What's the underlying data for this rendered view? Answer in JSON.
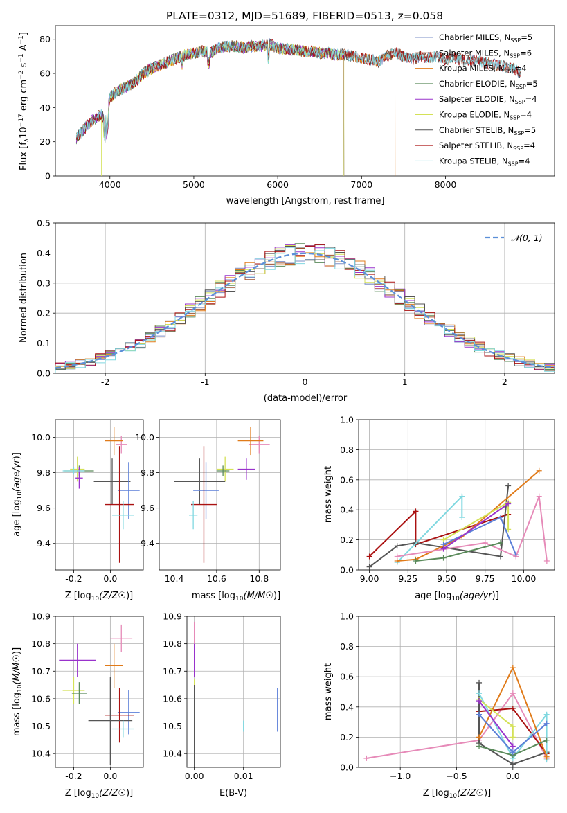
{
  "figure_title": "PLATE=0312, MJD=51689, FIBERID=0513, z=0.058",
  "colors": {
    "Chabrier MILES": "#7b8fc7",
    "Salpeter MILES": "#a0522d",
    "Kroupa MILES": "#e07b1a",
    "Chabrier ELODIE": "#5a8a5a",
    "Salpeter ELODIE": "#9932cc",
    "Kroupa ELODIE": "#d4e157",
    "Chabrier STELIB": "#555555",
    "Salpeter STELIB": "#aa1111",
    "Kroupa STELIB": "#80d8e0",
    "Chabrier MILES err": "#5b7fd8",
    "Salpeter MILES err": "#e68ab8",
    "normal": "#5b8fd8"
  },
  "legend_spectrum": [
    {
      "model": "Chabrier MILES",
      "text": "Chabrier MILES, N",
      "sub": "SSP",
      "suffix": "=5"
    },
    {
      "model": "Salpeter MILES",
      "text": "Salpeter MILES, N",
      "sub": "SSP",
      "suffix": "=6"
    },
    {
      "model": "Kroupa MILES",
      "text": "Kroupa MILES, N",
      "sub": "SSP",
      "suffix": "=4"
    },
    {
      "model": "Chabrier ELODIE",
      "text": "Chabrier ELODIE, N",
      "sub": "SSP",
      "suffix": "=5"
    },
    {
      "model": "Salpeter ELODIE",
      "text": "Salpeter ELODIE, N",
      "sub": "SSP",
      "suffix": "=4"
    },
    {
      "model": "Kroupa ELODIE",
      "text": "Kroupa ELODIE, N",
      "sub": "SSP",
      "suffix": "=4"
    },
    {
      "model": "Chabrier STELIB",
      "text": "Chabrier STELIB, N",
      "sub": "SSP",
      "suffix": "=5"
    },
    {
      "model": "Salpeter STELIB",
      "text": "Salpeter STELIB, N",
      "sub": "SSP",
      "suffix": "=4"
    },
    {
      "model": "Kroupa STELIB",
      "text": "Kroupa STELIB, N",
      "sub": "SSP",
      "suffix": "=4"
    }
  ],
  "chart_data": [
    {
      "id": "spectrum",
      "type": "line",
      "xlabel": "wavelength [Angstrom, rest frame]",
      "ylabel": "Flux [f",
      "xlim": [
        3350,
        9300
      ],
      "ylim": [
        0,
        88
      ],
      "xticks": [
        4000,
        5000,
        6000,
        7000,
        8000
      ],
      "yticks": [
        0,
        20,
        40,
        60,
        80
      ],
      "continuum": [
        [
          3600,
          22
        ],
        [
          3700,
          28
        ],
        [
          3800,
          33
        ],
        [
          3900,
          36
        ],
        [
          3950,
          32
        ],
        [
          4000,
          46
        ],
        [
          4100,
          50
        ],
        [
          4200,
          52
        ],
        [
          4300,
          55
        ],
        [
          4400,
          60
        ],
        [
          4500,
          63
        ],
        [
          4600,
          65
        ],
        [
          4700,
          67
        ],
        [
          4800,
          69
        ],
        [
          4900,
          71
        ],
        [
          5000,
          72
        ],
        [
          5100,
          73
        ],
        [
          5200,
          72
        ],
        [
          5300,
          75
        ],
        [
          5400,
          76
        ],
        [
          5500,
          76
        ],
        [
          5600,
          75
        ],
        [
          5700,
          76
        ],
        [
          5800,
          76
        ],
        [
          5900,
          77
        ],
        [
          6000,
          75
        ],
        [
          6100,
          74
        ],
        [
          6200,
          74
        ],
        [
          6300,
          73
        ],
        [
          6400,
          73
        ],
        [
          6500,
          72
        ],
        [
          6600,
          72
        ],
        [
          6700,
          71
        ],
        [
          6800,
          71
        ],
        [
          6900,
          70
        ],
        [
          7000,
          69
        ],
        [
          7100,
          68
        ],
        [
          7200,
          67
        ],
        [
          7300,
          70
        ],
        [
          7400,
          72
        ],
        [
          7500,
          70
        ],
        [
          7600,
          68
        ],
        [
          7700,
          70
        ],
        [
          7800,
          69
        ],
        [
          7900,
          70
        ],
        [
          8000,
          68
        ],
        [
          8100,
          69
        ],
        [
          8200,
          68
        ],
        [
          8300,
          68
        ],
        [
          8400,
          67
        ],
        [
          8500,
          66
        ],
        [
          8600,
          65
        ],
        [
          8700,
          64
        ],
        [
          8800,
          63
        ],
        [
          8900,
          60
        ]
      ],
      "model_ranges": {
        "Chabrier MILES": [
          3600,
          8900
        ],
        "Salpeter MILES": [
          3600,
          8900
        ],
        "Kroupa MILES": [
          3600,
          7400
        ],
        "Chabrier ELODIE": [
          3600,
          6790
        ],
        "Salpeter ELODIE": [
          3600,
          6790
        ],
        "Kroupa ELODIE": [
          3900,
          6790
        ],
        "Chabrier STELIB": [
          3600,
          8900
        ],
        "Salpeter STELIB": [
          3600,
          8900
        ],
        "Kroupa STELIB": [
          3600,
          8900
        ]
      }
    },
    {
      "id": "residuals",
      "type": "histogram",
      "xlabel": "(data-model)/error",
      "ylabel": "Normed distribution",
      "xlim": [
        -2.5,
        2.5
      ],
      "ylim": [
        0,
        0.5
      ],
      "xticks": [
        -2,
        -1,
        0,
        1,
        2
      ],
      "yticks": [
        0.0,
        0.1,
        0.2,
        0.3,
        0.4,
        0.5
      ],
      "legend": "𝒩(0, 1)",
      "bins": {
        "start": -2.5,
        "width": 0.1,
        "count": 50
      }
    },
    {
      "id": "age_vs_Z",
      "type": "scatter",
      "xlabel": "Z [log",
      "ylabel": "age  [log",
      "xlim": [
        -0.3,
        0.18
      ],
      "ylim": [
        9.25,
        10.1
      ],
      "xticks": [
        -0.2,
        0.0
      ],
      "yticks": [
        9.4,
        9.6,
        9.8,
        10.0
      ],
      "points": [
        {
          "model": "Salpeter MILES err",
          "x": 0.06,
          "y": 9.96,
          "xerr": 0.03,
          "yerr": 0.05
        },
        {
          "model": "Kroupa MILES",
          "x": 0.02,
          "y": 9.98,
          "xerr": 0.05,
          "yerr": 0.08
        },
        {
          "model": "Kroupa ELODIE",
          "x": -0.18,
          "y": 9.82,
          "xerr": 0.04,
          "yerr": 0.07
        },
        {
          "model": "Chabrier ELODIE",
          "x": -0.17,
          "y": 9.81,
          "xerr": 0.08,
          "yerr": 0.03
        },
        {
          "model": "Salpeter ELODIE",
          "x": -0.17,
          "y": 9.77,
          "xerr": 0.02,
          "yerr": 0.06
        },
        {
          "model": "Kroupa STELIB",
          "x": -0.2,
          "y": 9.81,
          "xerr": 0.06,
          "yerr": 0.02
        },
        {
          "model": "Chabrier STELIB",
          "x": 0.01,
          "y": 9.75,
          "xerr": 0.1,
          "yerr": 0.13
        },
        {
          "model": "Chabrier MILES err",
          "x": 0.1,
          "y": 9.7,
          "xerr": 0.06,
          "yerr": 0.16
        },
        {
          "model": "Salpeter STELIB",
          "x": 0.05,
          "y": 9.62,
          "xerr": 0.08,
          "yerr": 0.33
        },
        {
          "model": "Kroupa STELIB",
          "x": 0.07,
          "y": 9.56,
          "xerr": 0.06,
          "yerr": 0.08
        }
      ]
    },
    {
      "id": "age_vs_mass",
      "type": "scatter",
      "xlabel": "mass [log",
      "ylabel": "",
      "xlim": [
        10.33,
        10.9
      ],
      "ylim": [
        9.25,
        10.1
      ],
      "xticks": [
        10.4,
        10.6,
        10.8
      ],
      "yticks": [
        9.4,
        9.6,
        9.8,
        10.0
      ],
      "points": [
        {
          "model": "Salpeter MILES err",
          "x": 10.8,
          "y": 9.96,
          "xerr": 0.05,
          "yerr": 0.05
        },
        {
          "model": "Kroupa MILES",
          "x": 10.76,
          "y": 9.98,
          "xerr": 0.06,
          "yerr": 0.08
        },
        {
          "model": "Kroupa ELODIE",
          "x": 10.64,
          "y": 9.82,
          "xerr": 0.04,
          "yerr": 0.07
        },
        {
          "model": "Chabrier ELODIE",
          "x": 10.63,
          "y": 9.81,
          "xerr": 0.03,
          "yerr": 0.03
        },
        {
          "model": "Salpeter ELODIE",
          "x": 10.74,
          "y": 9.82,
          "xerr": 0.04,
          "yerr": 0.06
        },
        {
          "model": "Chabrier STELIB",
          "x": 10.52,
          "y": 9.75,
          "xerr": 0.12,
          "yerr": 0.13
        },
        {
          "model": "Chabrier MILES err",
          "x": 10.55,
          "y": 9.7,
          "xerr": 0.06,
          "yerr": 0.16
        },
        {
          "model": "Salpeter STELIB",
          "x": 10.54,
          "y": 9.62,
          "xerr": 0.06,
          "yerr": 0.33
        },
        {
          "model": "Kroupa STELIB",
          "x": 10.49,
          "y": 9.56,
          "xerr": 0.02,
          "yerr": 0.08
        }
      ]
    },
    {
      "id": "weight_vs_age",
      "type": "line",
      "xlabel": "age  [log",
      "ylabel": "mass weight",
      "xlim": [
        8.93,
        10.2
      ],
      "ylim": [
        0,
        1
      ],
      "xticks": [
        9.0,
        9.25,
        9.5,
        9.75,
        10.0
      ],
      "yticks": [
        0.0,
        0.2,
        0.4,
        0.6,
        0.8,
        1.0
      ],
      "series": [
        {
          "model": "Salpeter STELIB",
          "x": [
            9.0,
            9.3,
            9.3,
            9.9
          ],
          "y": [
            0.09,
            0.39,
            0.17,
            0.37
          ]
        },
        {
          "model": "Chabrier STELIB",
          "x": [
            9.0,
            9.18,
            9.3,
            9.85,
            9.9
          ],
          "y": [
            0.02,
            0.16,
            0.18,
            0.09,
            0.56
          ]
        },
        {
          "model": "Kroupa STELIB",
          "x": [
            9.18,
            9.6,
            9.6
          ],
          "y": [
            0.05,
            0.49,
            0.35
          ]
        },
        {
          "model": "Kroupa MILES",
          "x": [
            9.18,
            9.3,
            9.6,
            10.1
          ],
          "y": [
            0.06,
            0.07,
            0.22,
            0.66
          ]
        },
        {
          "model": "Salpeter MILES err",
          "x": [
            9.18,
            9.75,
            9.95,
            10.1,
            10.15
          ],
          "y": [
            0.09,
            0.18,
            0.09,
            0.49,
            0.06
          ]
        },
        {
          "model": "Chabrier ELODIE",
          "x": [
            9.3,
            9.48,
            9.85
          ],
          "y": [
            0.06,
            0.08,
            0.18
          ]
        },
        {
          "model": "Kroupa ELODIE",
          "x": [
            9.48,
            9.9,
            9.9
          ],
          "y": [
            0.2,
            0.45,
            0.27
          ]
        },
        {
          "model": "Chabrier MILES err",
          "x": [
            9.48,
            9.85,
            9.95
          ],
          "y": [
            0.17,
            0.35,
            0.1
          ]
        },
        {
          "model": "Salpeter ELODIE",
          "x": [
            9.48,
            9.9
          ],
          "y": [
            0.14,
            0.44
          ]
        }
      ]
    },
    {
      "id": "mass_vs_Z",
      "type": "scatter",
      "xlabel": "Z [log",
      "ylabel": "mass [log",
      "xlim": [
        -0.3,
        0.18
      ],
      "ylim": [
        10.35,
        10.9
      ],
      "xticks": [
        -0.2,
        0.0
      ],
      "yticks": [
        10.4,
        10.5,
        10.6,
        10.7,
        10.8,
        10.9
      ],
      "points": [
        {
          "model": "Salpeter MILES err",
          "x": 0.06,
          "y": 10.82,
          "xerr": 0.06,
          "yerr": 0.05
        },
        {
          "model": "Salpeter ELODIE",
          "x": -0.18,
          "y": 10.74,
          "xerr": 0.1,
          "yerr": 0.06
        },
        {
          "model": "Kroupa MILES",
          "x": 0.02,
          "y": 10.72,
          "xerr": 0.05,
          "yerr": 0.08
        },
        {
          "model": "Kroupa ELODIE",
          "x": -0.2,
          "y": 10.63,
          "xerr": 0.06,
          "yerr": 0.05
        },
        {
          "model": "Chabrier ELODIE",
          "x": -0.17,
          "y": 10.62,
          "xerr": 0.04,
          "yerr": 0.04
        },
        {
          "model": "Chabrier MILES err",
          "x": 0.1,
          "y": 10.55,
          "xerr": 0.06,
          "yerr": 0.08
        },
        {
          "model": "Salpeter STELIB",
          "x": 0.05,
          "y": 10.54,
          "xerr": 0.08,
          "yerr": 0.1
        },
        {
          "model": "Chabrier STELIB",
          "x": 0.0,
          "y": 10.52,
          "xerr": 0.12,
          "yerr": 0.16
        },
        {
          "model": "Kroupa STELIB",
          "x": 0.07,
          "y": 10.49,
          "xerr": 0.06,
          "yerr": 0.03
        }
      ]
    },
    {
      "id": "mass_vs_EBV",
      "type": "scatter",
      "xlabel": "E(B-V)",
      "ylabel": "",
      "xlim": [
        -0.0015,
        0.0175
      ],
      "ylim": [
        10.35,
        10.9
      ],
      "xticks": [
        0.0,
        0.01
      ],
      "yticks": [
        10.4,
        10.5,
        10.6,
        10.7,
        10.8,
        10.9
      ],
      "points": [
        {
          "model": "Salpeter MILES err",
          "x": 0.0,
          "y": 10.82,
          "xerr": 0,
          "yerr": 0.06
        },
        {
          "model": "Salpeter ELODIE",
          "x": 0.0,
          "y": 10.74,
          "xerr": 0,
          "yerr": 0.06
        },
        {
          "model": "Kroupa ELODIE",
          "x": 0.0,
          "y": 10.64,
          "xerr": 0,
          "yerr": 0.03
        },
        {
          "model": "Salpeter STELIB",
          "x": 0.0,
          "y": 10.55,
          "xerr": 0,
          "yerr": 0.1
        },
        {
          "model": "Chabrier STELIB",
          "x": 0.0,
          "y": 10.5,
          "xerr": 0,
          "yerr": 0.15
        },
        {
          "model": "Kroupa STELIB",
          "x": 0.01,
          "y": 10.5,
          "xerr": 0,
          "yerr": 0.02
        },
        {
          "model": "Chabrier MILES err",
          "x": 0.0169,
          "y": 10.56,
          "xerr": 0,
          "yerr": 0.08
        }
      ]
    },
    {
      "id": "weight_vs_Z",
      "type": "line",
      "xlabel": "Z [log",
      "ylabel": "mass weight",
      "xlim": [
        -1.37,
        0.37
      ],
      "ylim": [
        0,
        1
      ],
      "xticks": [
        -1.0,
        -0.5,
        0.0
      ],
      "yticks": [
        0.0,
        0.2,
        0.4,
        0.6,
        0.8,
        1.0
      ],
      "series": [
        {
          "model": "Salpeter MILES err",
          "x": [
            -1.3,
            -0.3,
            0.0,
            0.3
          ],
          "y": [
            0.06,
            0.18,
            0.49,
            0.06
          ]
        },
        {
          "model": "Salpeter STELIB",
          "x": [
            -0.3,
            0.0,
            0.3
          ],
          "y": [
            0.37,
            0.39,
            0.09
          ]
        },
        {
          "model": "Chabrier STELIB",
          "x": [
            -0.3,
            -0.3,
            0.0,
            0.3
          ],
          "y": [
            0.56,
            0.16,
            0.02,
            0.1
          ]
        },
        {
          "model": "Kroupa STELIB",
          "x": [
            -0.3,
            0.0,
            0.3,
            0.3
          ],
          "y": [
            0.49,
            0.06,
            0.35,
            0.05
          ]
        },
        {
          "model": "Kroupa MILES",
          "x": [
            -0.3,
            0.0,
            0.3
          ],
          "y": [
            0.2,
            0.66,
            0.07
          ]
        },
        {
          "model": "Chabrier ELODIE",
          "x": [
            -0.3,
            0.0,
            0.3
          ],
          "y": [
            0.14,
            0.08,
            0.18
          ]
        },
        {
          "model": "Kroupa ELODIE",
          "x": [
            -0.3,
            0.0,
            0.0
          ],
          "y": [
            0.45,
            0.27,
            0.2
          ]
        },
        {
          "model": "Chabrier MILES err",
          "x": [
            -0.3,
            0.0,
            0.3
          ],
          "y": [
            0.35,
            0.1,
            0.29
          ]
        },
        {
          "model": "Salpeter ELODIE",
          "x": [
            -0.3,
            0.0
          ],
          "y": [
            0.44,
            0.14
          ]
        }
      ]
    }
  ]
}
